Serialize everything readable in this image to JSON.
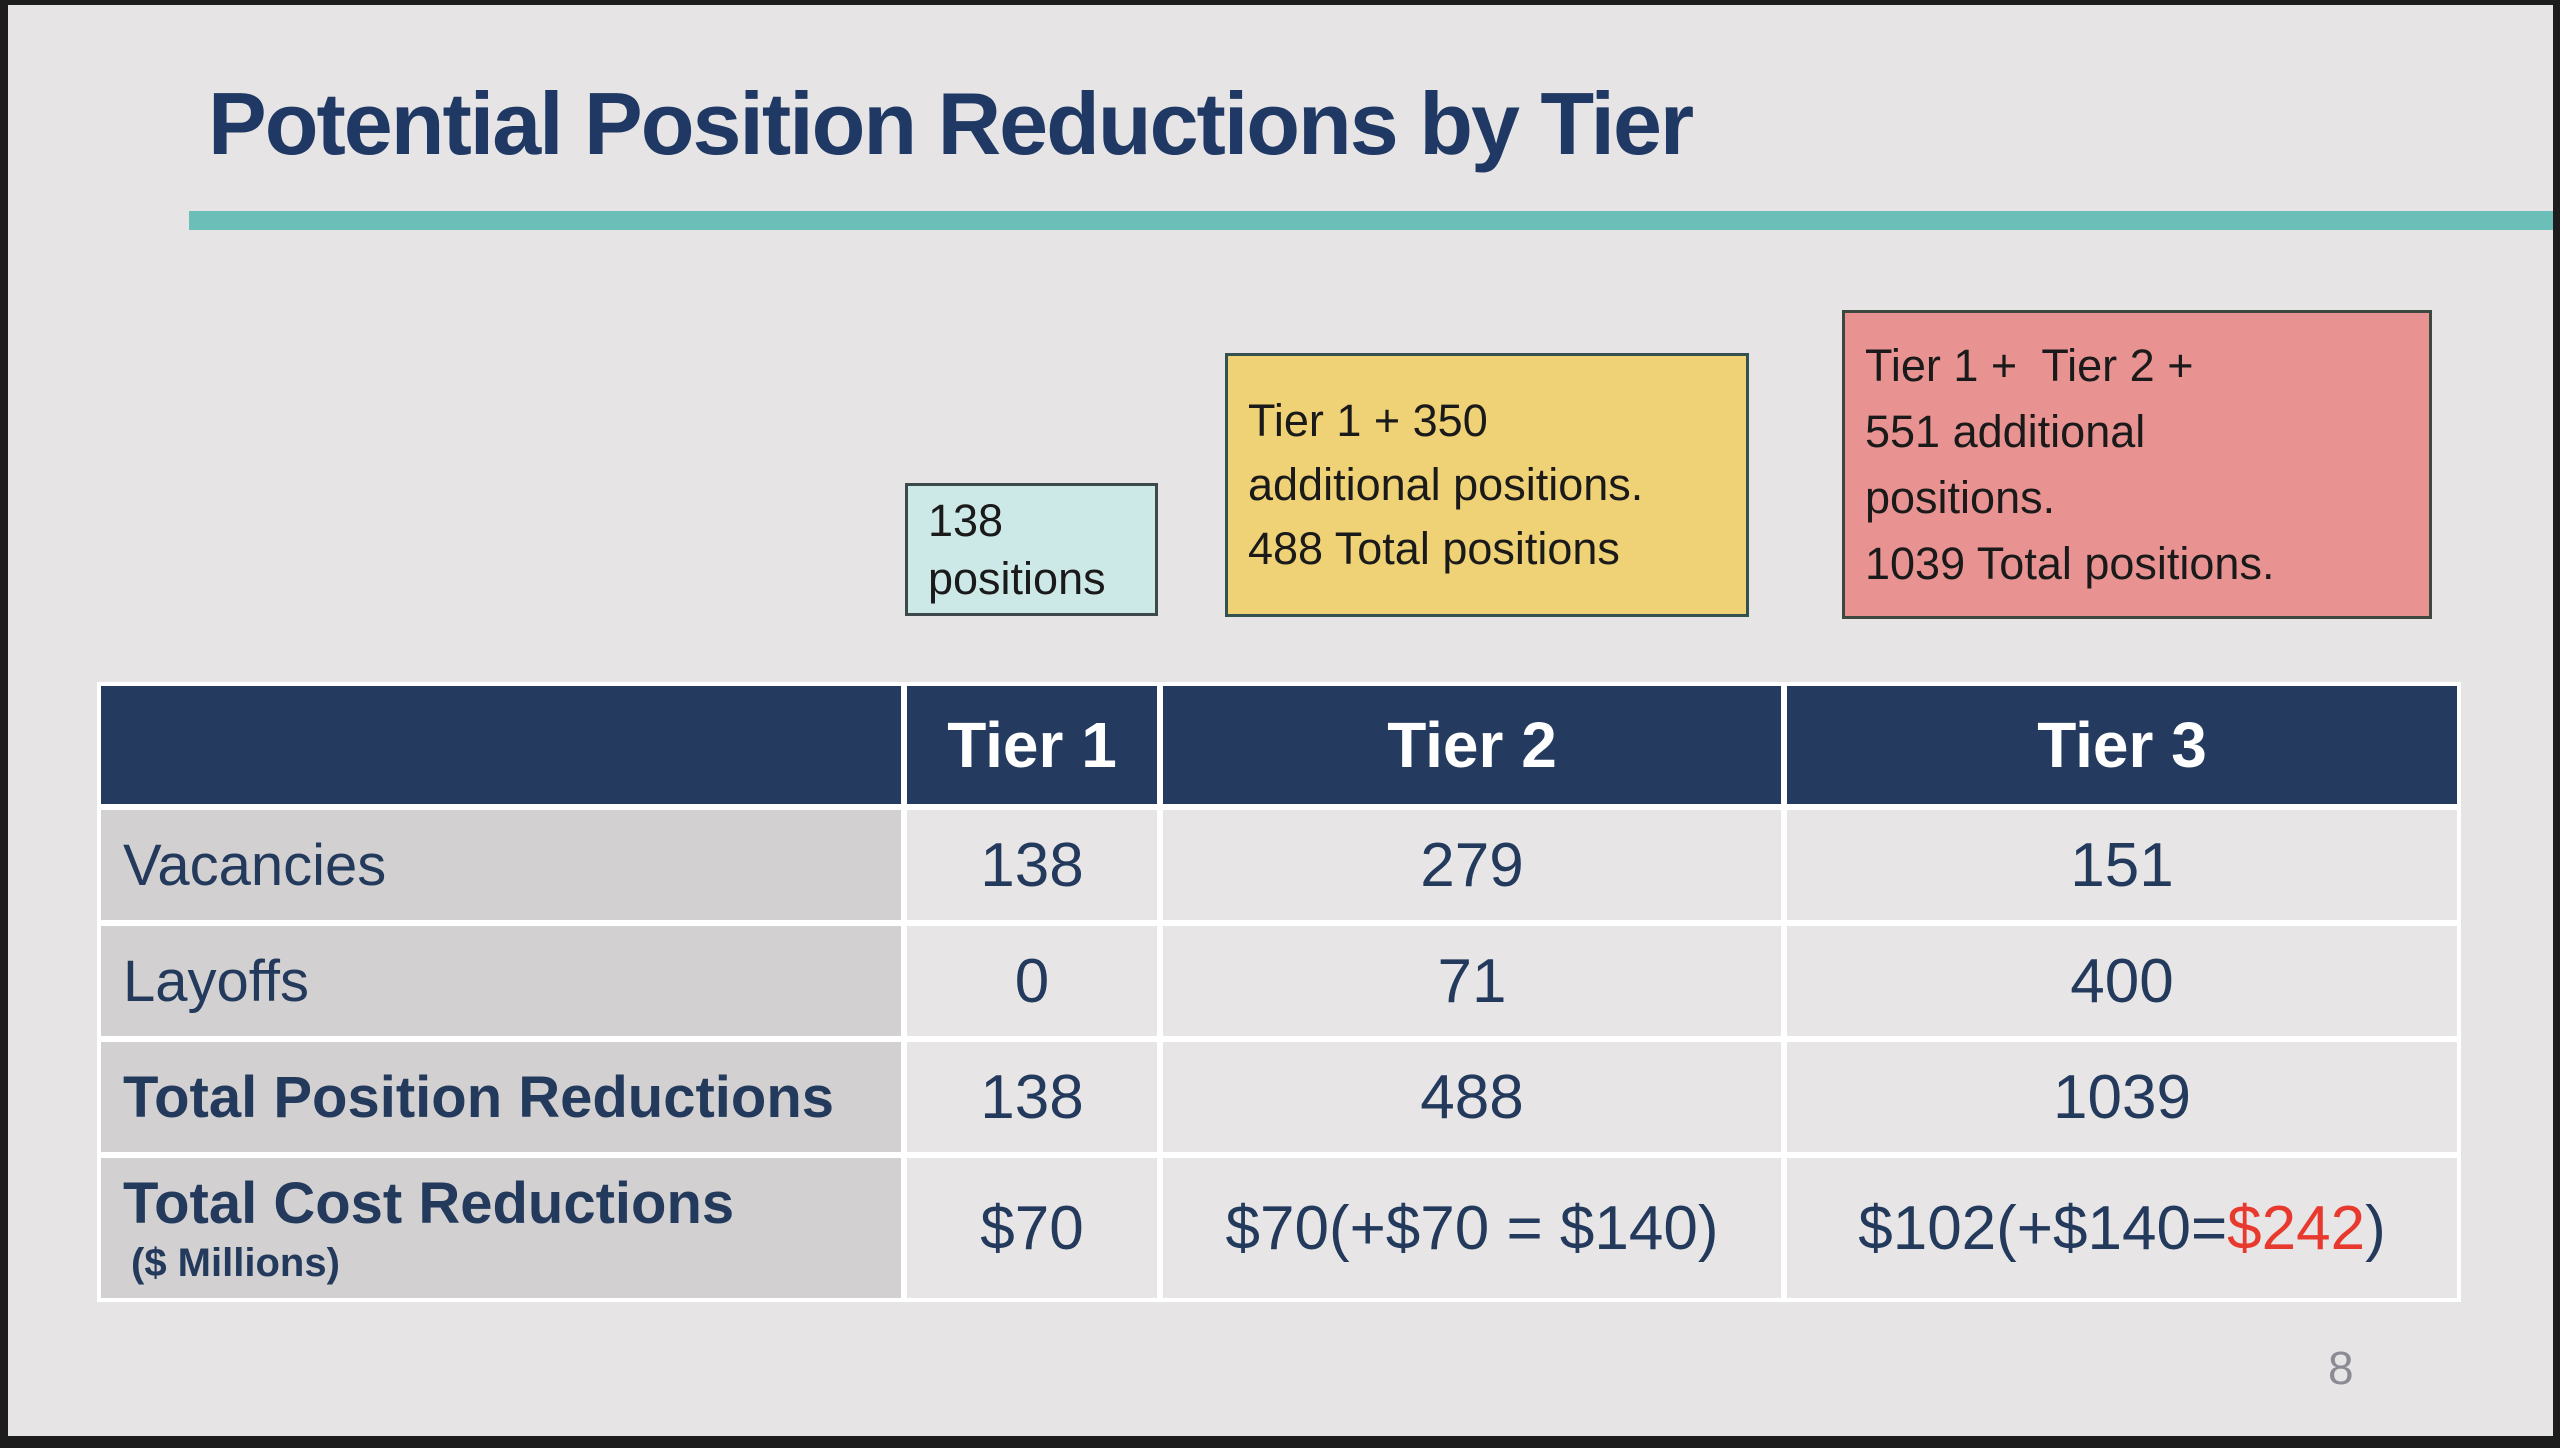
{
  "slide": {
    "title": "Potential Position Reductions by Tier",
    "page_number": "8",
    "colors": {
      "title_navy": "#1F3864",
      "table_navy": "#243A5E",
      "teal_rule": "#6CBFB8",
      "red_accent": "#E8392E",
      "slide_bg": "#E6E4E4",
      "label_cell_bg": "#D2D0D1",
      "value_cell_bg": "#E7E5E6",
      "callout_cyan_fill": "#CDE9E7",
      "callout_yellow_fill": "#EFD176",
      "callout_red_fill": "#E89391"
    }
  },
  "callouts": {
    "tier1": {
      "lines": [
        "138",
        "positions"
      ]
    },
    "tier2": {
      "lines": [
        "Tier 1 + 350",
        "additional positions.",
        "488 Total positions"
      ]
    },
    "tier3": {
      "lines": [
        "Tier 1 +  Tier 2 +",
        "551 additional",
        "positions.",
        "1039 Total positions."
      ]
    }
  },
  "table": {
    "header": {
      "col0": "",
      "col1": "Tier 1",
      "col2": "Tier 2",
      "col3": "Tier 3"
    },
    "rows": [
      {
        "label": "Vacancies",
        "values": [
          "138",
          "279",
          "151"
        ]
      },
      {
        "label": "Layoffs",
        "values": [
          "0",
          "71",
          "400"
        ]
      },
      {
        "label": "Total Position Reductions",
        "values": [
          "138",
          "488",
          "1039"
        ]
      },
      {
        "label": "Total Cost Reductions",
        "sublabel": "($ Millions)",
        "values": [
          "$70",
          "$70(+$70 = $140)"
        ],
        "rich_value": {
          "prefix": "$102(+$140=",
          "highlight": "$242",
          "suffix": ")"
        }
      }
    ]
  }
}
